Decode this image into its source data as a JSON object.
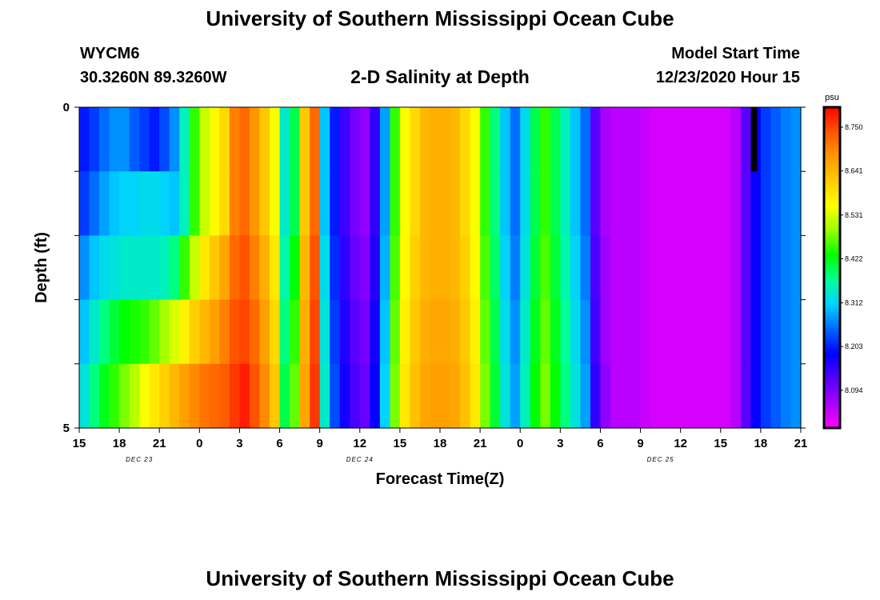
{
  "header": {
    "title": "University of Southern Mississippi Ocean Cube",
    "footer_title": "University of Southern Mississippi Ocean Cube",
    "station": "WYCM6",
    "coordinates": "30.3260N 89.3260W",
    "chart_title": "2-D Salinity at Depth",
    "model_start_label": "Model Start Time",
    "model_start_value": "12/23/2020 Hour 15"
  },
  "colors": {
    "scale": [
      "#ff00ff",
      "#aa00ff",
      "#5500ff",
      "#0000ff",
      "#0066ff",
      "#00d2ff",
      "#00ff99",
      "#00ff00",
      "#99ff00",
      "#ffff00",
      "#ffcc00",
      "#ff9900",
      "#ff5500",
      "#ff0000"
    ],
    "outline": "#000000",
    "marker": "#000000"
  },
  "chart_data": {
    "type": "heatmap",
    "title": "2-D Salinity at Depth",
    "xlabel": "Forecast Time(Z)",
    "ylabel": "Depth (ft)",
    "x_ticks": [
      "15",
      "18",
      "21",
      "0",
      "3",
      "6",
      "9",
      "12",
      "15",
      "18",
      "21",
      "0",
      "3",
      "6",
      "9",
      "12",
      "15",
      "18",
      "21"
    ],
    "date_labels": [
      {
        "label": "DEC 23",
        "hour": 4.5
      },
      {
        "label": "DEC 24",
        "hour": 21
      },
      {
        "label": "DEC 25",
        "hour": 43.5
      }
    ],
    "x_range_hours": [
      0,
      54
    ],
    "y_range_ft": [
      0,
      5
    ],
    "y_ticks": [
      "0",
      "5"
    ],
    "depth_levels": [
      0,
      1,
      2,
      3,
      4
    ],
    "colorbar": {
      "unit": "psu",
      "min": 8.0,
      "max": 8.8,
      "ticks": [
        "8.750",
        "8.641",
        "8.531",
        "8.422",
        "8.312",
        "8.203",
        "8.094"
      ]
    },
    "salinity_psu": [
      [
        8.2,
        8.22,
        8.25,
        8.27,
        8.27,
        8.24,
        8.22,
        8.2,
        8.23,
        8.27,
        8.35,
        8.45,
        8.52,
        8.56,
        8.6,
        8.7,
        8.72,
        8.68,
        8.62,
        8.55,
        8.34,
        8.4,
        8.62,
        8.72,
        8.3,
        8.2,
        8.14,
        8.1,
        8.08,
        8.15,
        8.28,
        8.45,
        8.55,
        8.6,
        8.64,
        8.65,
        8.65,
        8.64,
        8.6,
        8.55,
        8.45,
        8.38,
        8.3,
        8.25,
        8.32,
        8.4,
        8.45,
        8.4,
        8.35,
        8.3,
        8.25,
        8.12,
        8.06,
        8.05,
        8.05,
        8.05,
        8.04,
        8.03,
        8.03,
        8.03,
        8.03,
        8.03,
        8.03,
        8.03,
        8.03,
        8.05,
        8.12,
        8.18,
        8.22,
        8.24,
        8.26,
        8.27
      ],
      [
        8.22,
        8.25,
        8.28,
        8.3,
        8.31,
        8.31,
        8.32,
        8.32,
        8.31,
        8.3,
        8.35,
        8.45,
        8.52,
        8.56,
        8.6,
        8.7,
        8.72,
        8.68,
        8.62,
        8.55,
        8.34,
        8.4,
        8.62,
        8.72,
        8.3,
        8.2,
        8.14,
        8.1,
        8.08,
        8.15,
        8.28,
        8.45,
        8.55,
        8.6,
        8.64,
        8.65,
        8.65,
        8.64,
        8.6,
        8.55,
        8.45,
        8.38,
        8.3,
        8.25,
        8.32,
        8.4,
        8.45,
        8.4,
        8.35,
        8.3,
        8.25,
        8.12,
        8.06,
        8.05,
        8.05,
        8.05,
        8.04,
        8.03,
        8.03,
        8.03,
        8.03,
        8.03,
        8.03,
        8.03,
        8.03,
        8.05,
        8.12,
        8.18,
        8.22,
        8.24,
        8.26,
        8.27
      ],
      [
        8.27,
        8.3,
        8.32,
        8.33,
        8.34,
        8.34,
        8.34,
        8.34,
        8.35,
        8.38,
        8.45,
        8.52,
        8.58,
        8.62,
        8.66,
        8.72,
        8.74,
        8.7,
        8.65,
        8.58,
        8.36,
        8.43,
        8.64,
        8.74,
        8.32,
        8.21,
        8.15,
        8.11,
        8.09,
        8.16,
        8.29,
        8.46,
        8.56,
        8.61,
        8.64,
        8.65,
        8.65,
        8.64,
        8.61,
        8.56,
        8.46,
        8.39,
        8.31,
        8.26,
        8.33,
        8.41,
        8.46,
        8.41,
        8.36,
        8.31,
        8.26,
        8.13,
        8.07,
        8.05,
        8.05,
        8.05,
        8.04,
        8.03,
        8.03,
        8.03,
        8.03,
        8.03,
        8.03,
        8.03,
        8.03,
        8.05,
        8.12,
        8.18,
        8.22,
        8.24,
        8.26,
        8.27
      ],
      [
        8.3,
        8.34,
        8.38,
        8.41,
        8.43,
        8.44,
        8.45,
        8.47,
        8.5,
        8.53,
        8.57,
        8.61,
        8.64,
        8.67,
        8.7,
        8.74,
        8.75,
        8.72,
        8.67,
        8.6,
        8.38,
        8.45,
        8.65,
        8.75,
        8.33,
        8.22,
        8.16,
        8.12,
        8.1,
        8.17,
        8.3,
        8.47,
        8.57,
        8.62,
        8.65,
        8.66,
        8.66,
        8.65,
        8.62,
        8.57,
        8.47,
        8.4,
        8.32,
        8.27,
        8.34,
        8.42,
        8.47,
        8.42,
        8.37,
        8.32,
        8.27,
        8.14,
        8.07,
        8.05,
        8.05,
        8.05,
        8.04,
        8.03,
        8.03,
        8.03,
        8.03,
        8.03,
        8.03,
        8.03,
        8.03,
        8.05,
        8.12,
        8.18,
        8.22,
        8.24,
        8.26,
        8.27
      ],
      [
        8.33,
        8.38,
        8.42,
        8.45,
        8.48,
        8.51,
        8.55,
        8.58,
        8.61,
        8.64,
        8.67,
        8.69,
        8.71,
        8.72,
        8.73,
        8.76,
        8.78,
        8.74,
        8.69,
        8.62,
        8.4,
        8.47,
        8.66,
        8.76,
        8.34,
        8.23,
        8.17,
        8.13,
        8.11,
        8.18,
        8.31,
        8.48,
        8.58,
        8.63,
        8.66,
        8.67,
        8.67,
        8.66,
        8.63,
        8.58,
        8.48,
        8.41,
        8.33,
        8.28,
        8.35,
        8.43,
        8.48,
        8.43,
        8.38,
        8.33,
        8.28,
        8.15,
        8.08,
        8.05,
        8.05,
        8.05,
        8.04,
        8.03,
        8.03,
        8.03,
        8.03,
        8.03,
        8.03,
        8.03,
        8.03,
        8.05,
        8.12,
        8.18,
        8.22,
        8.24,
        8.26,
        8.27
      ]
    ],
    "missing_marker": {
      "hour": 50.5,
      "depth_level": 0
    }
  }
}
